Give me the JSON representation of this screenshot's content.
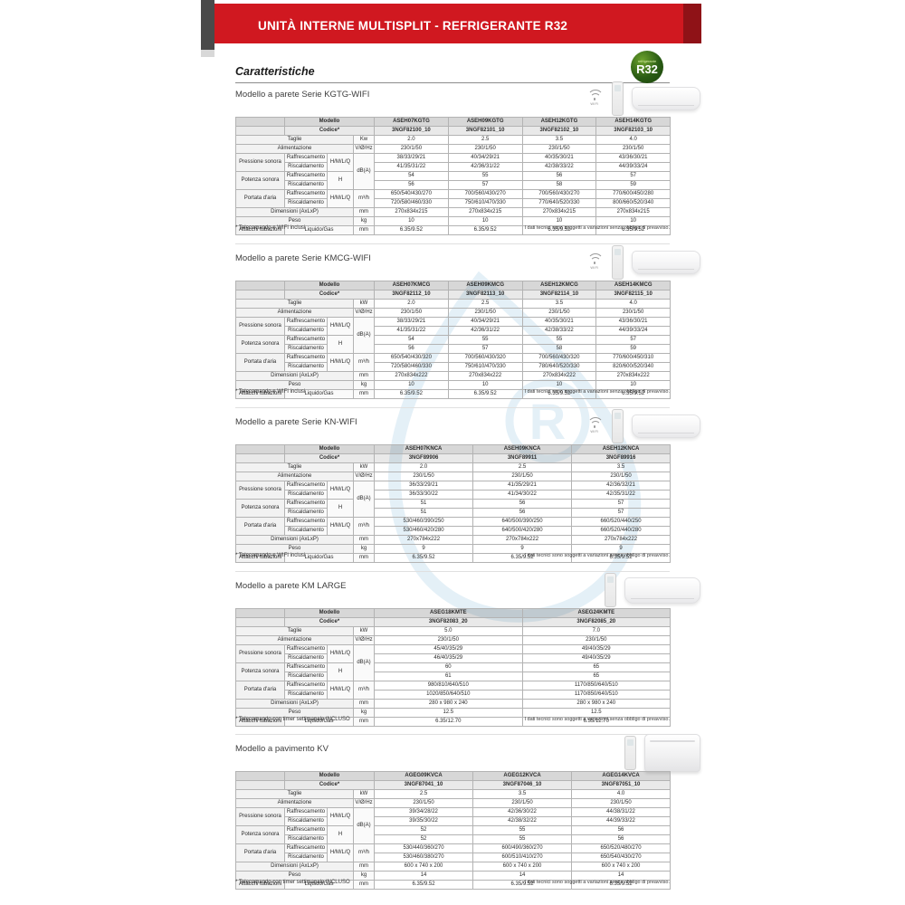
{
  "banner": {
    "title": "UNITÀ INTERNE MULTISPLIT - REFRIGERANTE R32"
  },
  "heading": "Caratteristiche",
  "badge": {
    "small": "refrigerante",
    "big": "R32"
  },
  "colors": {
    "banner_red": "#d01820",
    "banner_dark_red": "#8f1217",
    "model_red": "#cc3b40",
    "table_red_line": "#c41320",
    "badge_green": "#2a5c14",
    "watermark_blue": "#cfe5f2"
  },
  "labels": {
    "modello": "Modello",
    "codice": "Codice*",
    "taglie": "Taglie",
    "alimentazione": "Alimentazione",
    "pressione": "Pressione sonora",
    "potenza": "Potenza sonora",
    "portata": "Portata d'aria",
    "raffrescamento": "Raffrescamento",
    "riscaldamento": "Riscaldamento",
    "hmlq": "H/M/L/Q",
    "h": "H",
    "dimensioni": "Dimensioni (AxLxP)",
    "peso": "Peso",
    "attacchi": "Attacchi tubazioni",
    "liquido_gas": "Liquido/Gas",
    "unit_vhz": "V/Ø/Hz",
    "unit_dba": "dB(A)",
    "unit_m3h": "m³/h",
    "unit_mm": "mm",
    "unit_kg": "kg",
    "disclaimer": "I dati tecnici sono soggetti a variazioni senza obbligo di preavviso."
  },
  "sections": [
    {
      "title": "Modello a parete Serie KGTG-WIFI",
      "icons": [
        "wifi-icon",
        "remote-icon",
        "wall-unit-icon"
      ],
      "unit_kw": "Kw",
      "models": [
        "ASEH07KGTG",
        "ASEH09KGTG",
        "ASEH12KGTG",
        "ASEH14KGTG"
      ],
      "codes": [
        "3NGF82100_10",
        "3NGF82101_10",
        "3NGF82102_10",
        "3NGF82103_10"
      ],
      "taglie": [
        "2.0",
        "2.5",
        "3.5",
        "4.0"
      ],
      "alimentazione": [
        "230/1/50",
        "230/1/50",
        "230/1/50",
        "230/1/50"
      ],
      "pressione_raffrescamento": [
        "38/33/29/21",
        "40/34/29/21",
        "40/35/30/21",
        "43/36/30/21"
      ],
      "pressione_riscaldamento": [
        "41/35/31/22",
        "42/36/31/22",
        "42/38/33/22",
        "44/39/33/24"
      ],
      "potenza_raffrescamento": [
        "54",
        "55",
        "56",
        "57"
      ],
      "potenza_riscaldamento": [
        "56",
        "57",
        "58",
        "59"
      ],
      "portata_raffrescamento": [
        "650/540/430/270",
        "700/560/430/270",
        "700/560/430/270",
        "770/600/450/280"
      ],
      "portata_riscaldamento": [
        "720/580/460/330",
        "750/610/470/330",
        "770/640/520/330",
        "800/660/520/340"
      ],
      "dimensioni": [
        "270x834x215",
        "270x834x215",
        "270x834x215",
        "270x834x215"
      ],
      "peso": [
        "10",
        "10",
        "10",
        "10"
      ],
      "attacchi": [
        "6.35/9.52",
        "6.35/9.52",
        "6.35/9.52",
        "6.35/9.52"
      ],
      "footnote": "* Telecomando e WIFI inclusi"
    },
    {
      "title": "Modello a parete Serie KMCG-WIFI",
      "icons": [
        "wifi-icon",
        "remote-icon",
        "wall-unit-icon"
      ],
      "unit_kw": "kW",
      "models": [
        "ASEH07KMCG",
        "ASEH09KMCG",
        "ASEH12KMCG",
        "ASEH14KMCG"
      ],
      "codes": [
        "3NGF82112_10",
        "3NGF82113_10",
        "3NGF82114_10",
        "3NGF82115_10"
      ],
      "taglie": [
        "2.0",
        "2.5",
        "3.5",
        "4.0"
      ],
      "alimentazione": [
        "230/1/50",
        "230/1/50",
        "230/1/50",
        "230/1/50"
      ],
      "pressione_raffrescamento": [
        "38/33/29/21",
        "40/34/29/21",
        "40/35/30/21",
        "43/36/30/21"
      ],
      "pressione_riscaldamento": [
        "41/35/31/22",
        "42/36/31/22",
        "42/38/33/22",
        "44/39/33/24"
      ],
      "potenza_raffrescamento": [
        "54",
        "55",
        "55",
        "57"
      ],
      "potenza_riscaldamento": [
        "56",
        "57",
        "58",
        "59"
      ],
      "portata_raffrescamento": [
        "650/540/430/320",
        "700/560/430/320",
        "700/560/430/320",
        "770/600/450/310"
      ],
      "portata_riscaldamento": [
        "720/580/460/330",
        "750/610/470/330",
        "780/640/520/330",
        "820/600/520/340"
      ],
      "dimensioni": [
        "270x834x222",
        "270x834x222",
        "270x834x222",
        "270x834x222"
      ],
      "peso": [
        "10",
        "10",
        "10",
        "10"
      ],
      "attacchi": [
        "6.35/9.52",
        "6.35/9.52",
        "6.35/9.52",
        "6.35/9.52"
      ],
      "footnote": "* Telecomando e WIFI inclusi"
    },
    {
      "title": "Modello a parete Serie KN-WIFI",
      "icons": [
        "wifi-icon",
        "remote-icon",
        "wall-unit-icon"
      ],
      "unit_kw": "kW",
      "models": [
        "ASEH07KNCA",
        "ASEH09KNCA",
        "ASEH12KNCA"
      ],
      "codes": [
        "3NGF89906",
        "3NGF89911",
        "3NGF89916"
      ],
      "taglie": [
        "2.0",
        "2.5",
        "3.5"
      ],
      "alimentazione": [
        "230/1/50",
        "230/1/50",
        "230/1/50"
      ],
      "pressione_raffrescamento": [
        "36/33/29/21",
        "41/35/29/21",
        "42/36/32/21"
      ],
      "pressione_riscaldamento": [
        "36/33/30/22",
        "41/34/30/22",
        "42/35/31/22"
      ],
      "potenza_raffrescamento": [
        "51",
        "56",
        "57"
      ],
      "potenza_riscaldamento": [
        "51",
        "56",
        "57"
      ],
      "portata_raffrescamento": [
        "530/460/390/250",
        "640/500/390/250",
        "660/520/440/250"
      ],
      "portata_riscaldamento": [
        "530/460/420/280",
        "640/500/420/280",
        "660/520/440/280"
      ],
      "dimensioni": [
        "270x784x222",
        "270x784x222",
        "270x784x222"
      ],
      "peso": [
        "9",
        "9",
        "9"
      ],
      "attacchi": [
        "6.35/9.52",
        "6.35/9.52",
        "6.35/9.52"
      ],
      "footnote": "* Telecomando e WIFI inclusi"
    },
    {
      "title": "Modello a parete KM LARGE",
      "icons": [
        "remote-icon",
        "wall-unit-large-icon"
      ],
      "unit_kw": "kW",
      "models": [
        "ASEG18KMTE",
        "ASEG24KMTE"
      ],
      "codes": [
        "3NGF82083_20",
        "3NGF82085_20"
      ],
      "taglie": [
        "5.0",
        "7.0"
      ],
      "alimentazione": [
        "230/1/50",
        "230/1/50"
      ],
      "pressione_raffrescamento": [
        "45/40/35/29",
        "49/40/35/29"
      ],
      "pressione_riscaldamento": [
        "46/40/35/29",
        "49/40/35/29"
      ],
      "potenza_raffrescamento": [
        "60",
        "65"
      ],
      "potenza_riscaldamento": [
        "61",
        "65"
      ],
      "portata_raffrescamento": [
        "980/810/640/510",
        "1170/850/640/510"
      ],
      "portata_riscaldamento": [
        "1020/850/640/510",
        "1170/850/640/510"
      ],
      "dimensioni": [
        "280 x 980 x 240",
        "280 x 980 x 240"
      ],
      "peso": [
        "12.5",
        "12.5"
      ],
      "attacchi": [
        "6.35/12.70",
        "6.35/12.70"
      ],
      "footnote": "* Telecomando con timer settimanale INCLUSO"
    },
    {
      "title": "Modello a pavimento KV",
      "icons": [
        "remote-icon",
        "floor-unit-icon"
      ],
      "unit_kw": "kW",
      "models": [
        "AGEG09KVCA",
        "AGEG12KVCA",
        "AGEG14KVCA"
      ],
      "codes": [
        "3NGF87041_10",
        "3NGF87046_10",
        "3NGF87051_10"
      ],
      "taglie": [
        "2.5",
        "3.5",
        "4.0"
      ],
      "alimentazione": [
        "230/1/50",
        "230/1/50",
        "230/1/50"
      ],
      "pressione_raffrescamento": [
        "39/34/28/22",
        "42/36/30/22",
        "44/38/31/22"
      ],
      "pressione_riscaldamento": [
        "39/35/30/22",
        "42/38/32/22",
        "44/39/33/22"
      ],
      "potenza_raffrescamento": [
        "52",
        "55",
        "56"
      ],
      "potenza_riscaldamento": [
        "52",
        "55",
        "56"
      ],
      "portata_raffrescamento": [
        "530/440/360/270",
        "600/490/360/270",
        "650/520/480/270"
      ],
      "portata_riscaldamento": [
        "530/460/380/270",
        "600/510/410/270",
        "650/540/430/270"
      ],
      "dimensioni": [
        "600 x 740 x 200",
        "600 x 740 x 200",
        "600 x 740 x 200"
      ],
      "peso": [
        "14",
        "14",
        "14"
      ],
      "attacchi": [
        "6.35/9.52",
        "6.35/9.52",
        "6.35/9.52"
      ],
      "footnote": "* Telecomando con timer settimanale INCLUSO"
    }
  ],
  "section_tops": [
    95,
    276,
    457,
    638,
    818
  ]
}
